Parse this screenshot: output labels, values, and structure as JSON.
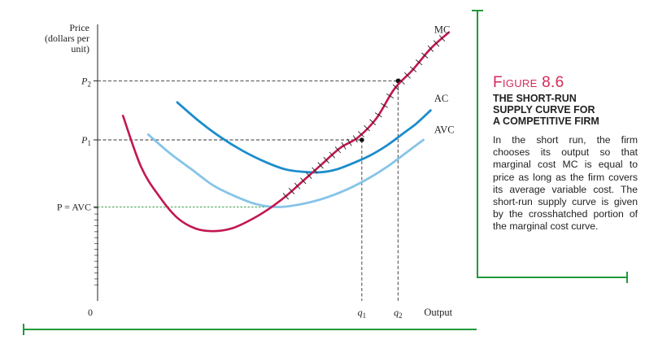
{
  "figure": {
    "label": "Figure 8.6",
    "title_lines": [
      "THE SHORT-RUN",
      "SUPPLY CURVE FOR",
      "A COMPETITIVE FIRM"
    ],
    "caption": "In the short run, the firm chooses its output so that marginal cost MC is equal to price as long as the firm cov­ers its average variable cost. The short-run supply curve is given by the crosshatched portion of the marginal cost curve."
  },
  "colors": {
    "accent": "#1f9a3a",
    "mc_curve": "#c2174f",
    "ac_curve": "#1c8ccc",
    "avc_curve": "#86c4e8",
    "label_red": "#d42a5a",
    "guide_green": "#3aa04a"
  },
  "chart_data": {
    "type": "line",
    "title": "",
    "ylabel": "Price (dollars per unit)",
    "xlabel": "Output",
    "origin_label": "0",
    "xlim": [
      0,
      100
    ],
    "ylim": [
      0,
      100
    ],
    "grid": false,
    "y_markers": [
      {
        "label": "P2",
        "value": 82
      },
      {
        "label": "P1",
        "value": 60
      },
      {
        "label": "P = AVC",
        "value": 35
      }
    ],
    "x_markers": [
      {
        "label": "q1",
        "value": 73
      },
      {
        "label": "q2",
        "value": 83
      }
    ],
    "series": [
      {
        "name": "MC",
        "x": [
          7,
          12,
          17,
          22,
          27,
          32,
          37,
          42,
          47,
          52,
          57,
          62,
          67,
          72,
          77,
          82,
          87,
          92,
          97
        ],
        "y": [
          69,
          50,
          39,
          31,
          27,
          26,
          27,
          30,
          34,
          39,
          45,
          51,
          57,
          61,
          68,
          79,
          86,
          94,
          100
        ],
        "crosshatch_from_x": 52
      },
      {
        "name": "AC",
        "x": [
          22,
          28,
          34,
          40,
          46,
          52,
          58,
          62,
          66,
          70,
          75,
          80,
          85,
          88,
          92
        ],
        "y": [
          74,
          67,
          61,
          56,
          52,
          49,
          48,
          48,
          49,
          51,
          54,
          58,
          63,
          66,
          71
        ]
      },
      {
        "name": "AVC",
        "x": [
          14,
          20,
          26,
          32,
          38,
          44,
          50,
          56,
          62,
          68,
          74,
          80,
          86,
          90
        ],
        "y": [
          62,
          55,
          49,
          43,
          39,
          36,
          35,
          36,
          38,
          41,
          45,
          50,
          56,
          60
        ]
      }
    ]
  }
}
